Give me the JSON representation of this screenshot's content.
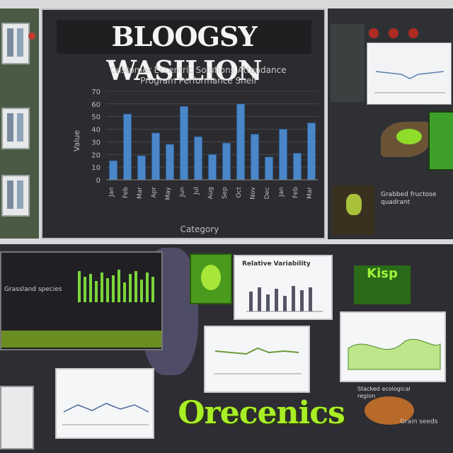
{
  "main": {
    "title": "BLOOGSY WASILION",
    "chart_title": "Customer Eccentric Solutions Attendance Program Performance Shell"
  },
  "chart_data": {
    "type": "bar",
    "title": "Customer Eccentric Solutions Attendance Program Performance Shell",
    "xlabel": "Category",
    "ylabel": "Value",
    "categories": [
      "Jan",
      "Feb",
      "Mar",
      "Apr",
      "May",
      "Jun",
      "Jul",
      "Aug",
      "Sep",
      "Oct",
      "Nov",
      "Dec",
      "Jan",
      "Feb",
      "Mar"
    ],
    "values": [
      15,
      52,
      19,
      37,
      28,
      58,
      34,
      20,
      29,
      60,
      36,
      18,
      40,
      21,
      45
    ],
    "yticks": [
      0,
      10,
      20,
      30,
      40,
      50,
      60,
      70
    ],
    "ylim": [
      0,
      70
    ],
    "grid": true,
    "legend": "none",
    "colors": {
      "bar": "#4a86c8"
    }
  },
  "right_panel": {
    "caption": "Grabbed fructose quadrant"
  },
  "bottom": {
    "left_text": "Grassland species",
    "center_chart_head": "Relative Variability",
    "right_green_word": "Kisp",
    "organics_word": "Orecenics",
    "bottom_caption": "Stacked ecological region",
    "bottom_right_text": "Grain seeds"
  },
  "icons": [
    "logo-badge-icon",
    "leaf-icon",
    "plant-icon",
    "seed-icon"
  ]
}
